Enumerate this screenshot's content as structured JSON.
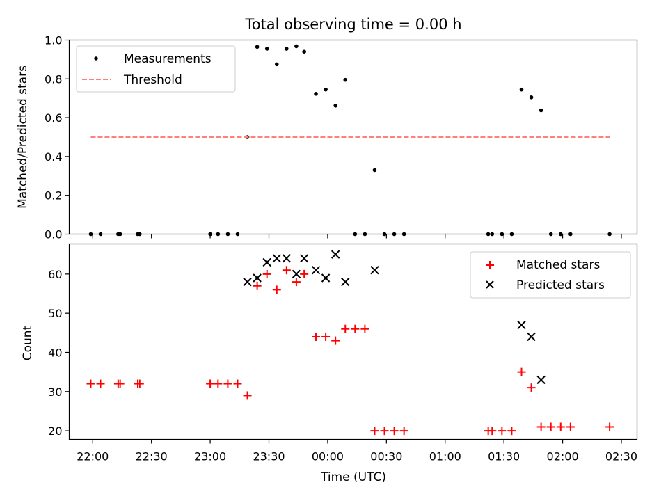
{
  "chart_data": [
    {
      "type": "scatter",
      "title": "Total observing time = 0.00 h",
      "ylabel": "Matched/Predicted stars",
      "xlabel": "",
      "xlim": [
        "21:48",
        "02:38"
      ],
      "ylim": [
        0,
        1.0
      ],
      "yticks": [
        0.0,
        0.2,
        0.4,
        0.6,
        0.8,
        1.0
      ],
      "ytick_labels": [
        "0.0",
        "0.2",
        "0.4",
        "0.6",
        "0.8",
        "1.0"
      ],
      "legend_position": "upper left",
      "grid": false,
      "series": [
        {
          "name": "Measurements",
          "marker": "dot",
          "color": "#000000",
          "points": [
            [
              "21:59",
              0.0
            ],
            [
              "22:04",
              0.0
            ],
            [
              "22:13",
              0.0
            ],
            [
              "22:14",
              0.0
            ],
            [
              "22:23",
              0.0
            ],
            [
              "22:24",
              0.0
            ],
            [
              "23:00",
              0.0
            ],
            [
              "23:04",
              0.0
            ],
            [
              "23:09",
              0.0
            ],
            [
              "23:14",
              0.0
            ],
            [
              "23:19",
              0.5
            ],
            [
              "23:24",
              0.965
            ],
            [
              "23:29",
              0.955
            ],
            [
              "23:34",
              0.875
            ],
            [
              "23:39",
              0.955
            ],
            [
              "23:44",
              0.968
            ],
            [
              "23:48",
              0.94
            ],
            [
              "23:54",
              0.723
            ],
            [
              "23:59",
              0.745
            ],
            [
              "00:04",
              0.662
            ],
            [
              "00:09",
              0.795
            ],
            [
              "00:14",
              0.0
            ],
            [
              "00:19",
              0.0
            ],
            [
              "00:24",
              0.33
            ],
            [
              "00:29",
              0.0
            ],
            [
              "00:34",
              0.0
            ],
            [
              "00:39",
              0.0
            ],
            [
              "01:22",
              0.0
            ],
            [
              "01:24",
              0.0
            ],
            [
              "01:29",
              0.0
            ],
            [
              "01:34",
              0.0
            ],
            [
              "01:39",
              0.745
            ],
            [
              "01:44",
              0.705
            ],
            [
              "01:49",
              0.638
            ],
            [
              "01:54",
              0.0
            ],
            [
              "01:59",
              0.0
            ],
            [
              "02:04",
              0.0
            ],
            [
              "02:24",
              0.0
            ]
          ]
        },
        {
          "name": "Threshold",
          "marker": "dashed-line",
          "color": "#ff7f7f",
          "x": [
            "21:59",
            "02:24"
          ],
          "y": [
            0.5,
            0.5
          ]
        }
      ]
    },
    {
      "type": "scatter",
      "title": "",
      "ylabel": "Count",
      "xlabel": "Time (UTC)",
      "xlim": [
        "21:48",
        "02:38"
      ],
      "ylim": [
        17.8,
        67.7
      ],
      "yticks": [
        20,
        30,
        40,
        50,
        60
      ],
      "ytick_labels": [
        "20",
        "30",
        "40",
        "50",
        "60"
      ],
      "xticks": [
        "22:00",
        "22:30",
        "23:00",
        "23:30",
        "00:00",
        "00:30",
        "01:00",
        "01:30",
        "02:00",
        "02:30"
      ],
      "legend_position": "upper right",
      "grid": false,
      "series": [
        {
          "name": "Matched stars",
          "marker": "plus",
          "color": "#ff0000",
          "points": [
            [
              "21:59",
              32
            ],
            [
              "22:04",
              32
            ],
            [
              "22:13",
              32
            ],
            [
              "22:14",
              32
            ],
            [
              "22:23",
              32
            ],
            [
              "22:24",
              32
            ],
            [
              "23:00",
              32
            ],
            [
              "23:04",
              32
            ],
            [
              "23:09",
              32
            ],
            [
              "23:14",
              32
            ],
            [
              "23:19",
              29
            ],
            [
              "23:24",
              57
            ],
            [
              "23:29",
              60
            ],
            [
              "23:34",
              56
            ],
            [
              "23:39",
              61
            ],
            [
              "23:44",
              58
            ],
            [
              "23:48",
              60
            ],
            [
              "23:54",
              44
            ],
            [
              "23:59",
              44
            ],
            [
              "00:04",
              43
            ],
            [
              "00:09",
              46
            ],
            [
              "00:14",
              46
            ],
            [
              "00:19",
              46
            ],
            [
              "00:24",
              20
            ],
            [
              "00:29",
              20
            ],
            [
              "00:34",
              20
            ],
            [
              "00:39",
              20
            ],
            [
              "01:22",
              20
            ],
            [
              "01:24",
              20
            ],
            [
              "01:29",
              20
            ],
            [
              "01:34",
              20
            ],
            [
              "01:39",
              35
            ],
            [
              "01:44",
              31
            ],
            [
              "01:49",
              21
            ],
            [
              "01:54",
              21
            ],
            [
              "01:59",
              21
            ],
            [
              "02:04",
              21
            ],
            [
              "02:24",
              21
            ]
          ]
        },
        {
          "name": "Predicted stars",
          "marker": "x",
          "color": "#000000",
          "points": [
            [
              "23:19",
              58
            ],
            [
              "23:24",
              59
            ],
            [
              "23:29",
              63
            ],
            [
              "23:34",
              64
            ],
            [
              "23:39",
              64
            ],
            [
              "23:44",
              60
            ],
            [
              "23:48",
              64
            ],
            [
              "23:54",
              61
            ],
            [
              "23:59",
              59
            ],
            [
              "00:04",
              65
            ],
            [
              "00:09",
              58
            ],
            [
              "00:24",
              61
            ],
            [
              "01:39",
              47
            ],
            [
              "01:44",
              44
            ],
            [
              "01:49",
              33
            ]
          ]
        }
      ]
    }
  ]
}
